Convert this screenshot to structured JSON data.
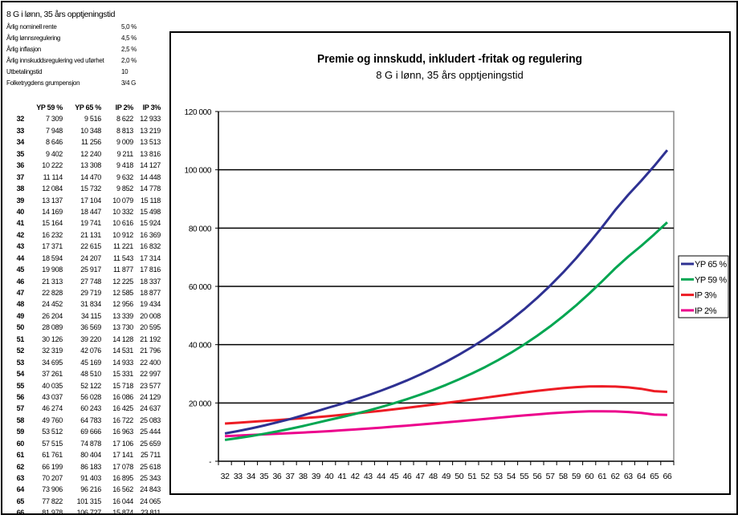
{
  "params": {
    "title": "8 G i lønn, 35 års opptjeningstid",
    "rows": [
      {
        "label": "Årlig nominell rente",
        "value": "5,0 %"
      },
      {
        "label": "Årlig lønnsregulering",
        "value": "4,5 %"
      },
      {
        "label": "Årlig inflasjon",
        "value": "2,5 %"
      },
      {
        "label": "Årlig innskuddsregulering ved uførhet",
        "value": "2,0 %"
      },
      {
        "label": "Utbetalingstid",
        "value": "10"
      },
      {
        "label": "Folketrygdens grumpensjon",
        "value": "3/4 G"
      }
    ]
  },
  "table": {
    "headers": [
      "",
      "YP 59 %",
      "YP 65 %",
      "IP 2%",
      "IP 3%"
    ]
  },
  "chart_data": {
    "type": "line",
    "title": "Premie og innskudd, inkludert -fritak og regulering",
    "subtitle": "8 G i lønn, 35 års opptjeningstid",
    "xlabel": "",
    "ylabel": "",
    "x": [
      32,
      33,
      34,
      35,
      36,
      37,
      38,
      39,
      40,
      41,
      42,
      43,
      44,
      45,
      46,
      47,
      48,
      49,
      50,
      51,
      52,
      53,
      54,
      55,
      56,
      57,
      58,
      59,
      60,
      61,
      62,
      63,
      64,
      65,
      66
    ],
    "ylim": [
      0,
      120000
    ],
    "yticks": [
      "-",
      "20 000",
      "40 000",
      "60 000",
      "80 000",
      "100 000",
      "120 000"
    ],
    "grid": true,
    "legend_position": "right",
    "series": [
      {
        "name": "YP 65 %",
        "color": "#2e3192",
        "values": [
          9516,
          10348,
          11256,
          12240,
          13308,
          14470,
          15732,
          17104,
          18447,
          19741,
          21131,
          22615,
          24207,
          25917,
          27748,
          29719,
          31834,
          34115,
          36569,
          39220,
          42076,
          45169,
          48510,
          52122,
          56028,
          60243,
          64783,
          69666,
          74878,
          80404,
          86183,
          91403,
          96216,
          101315,
          106727
        ]
      },
      {
        "name": "YP 59 %",
        "color": "#00a651",
        "values": [
          7309,
          7948,
          8646,
          9402,
          10222,
          11114,
          12084,
          13137,
          14169,
          15164,
          16232,
          17371,
          18594,
          19908,
          21313,
          22828,
          24452,
          26204,
          28089,
          30126,
          32319,
          34695,
          37261,
          40035,
          43037,
          46274,
          49760,
          53512,
          57515,
          61761,
          66199,
          70207,
          73906,
          77822,
          81978
        ]
      },
      {
        "name": "IP 3%",
        "color": "#ed1c24",
        "values": [
          12933,
          13219,
          13513,
          13816,
          14127,
          14448,
          14778,
          15118,
          15498,
          15924,
          16369,
          16832,
          17314,
          17816,
          18337,
          18877,
          19434,
          20008,
          20595,
          21192,
          21796,
          22400,
          22997,
          23577,
          24129,
          24637,
          25083,
          25444,
          25659,
          25711,
          25618,
          25343,
          24843,
          24065,
          23811
        ]
      },
      {
        "name": "IP 2%",
        "color": "#ec008c",
        "values": [
          8622,
          8813,
          9009,
          9211,
          9418,
          9632,
          9852,
          10079,
          10332,
          10616,
          10912,
          11221,
          11543,
          11877,
          12225,
          12585,
          12956,
          13339,
          13730,
          14128,
          14531,
          14933,
          15331,
          15718,
          16086,
          16425,
          16722,
          16963,
          17106,
          17141,
          17078,
          16895,
          16562,
          16044,
          15874
        ]
      }
    ]
  }
}
